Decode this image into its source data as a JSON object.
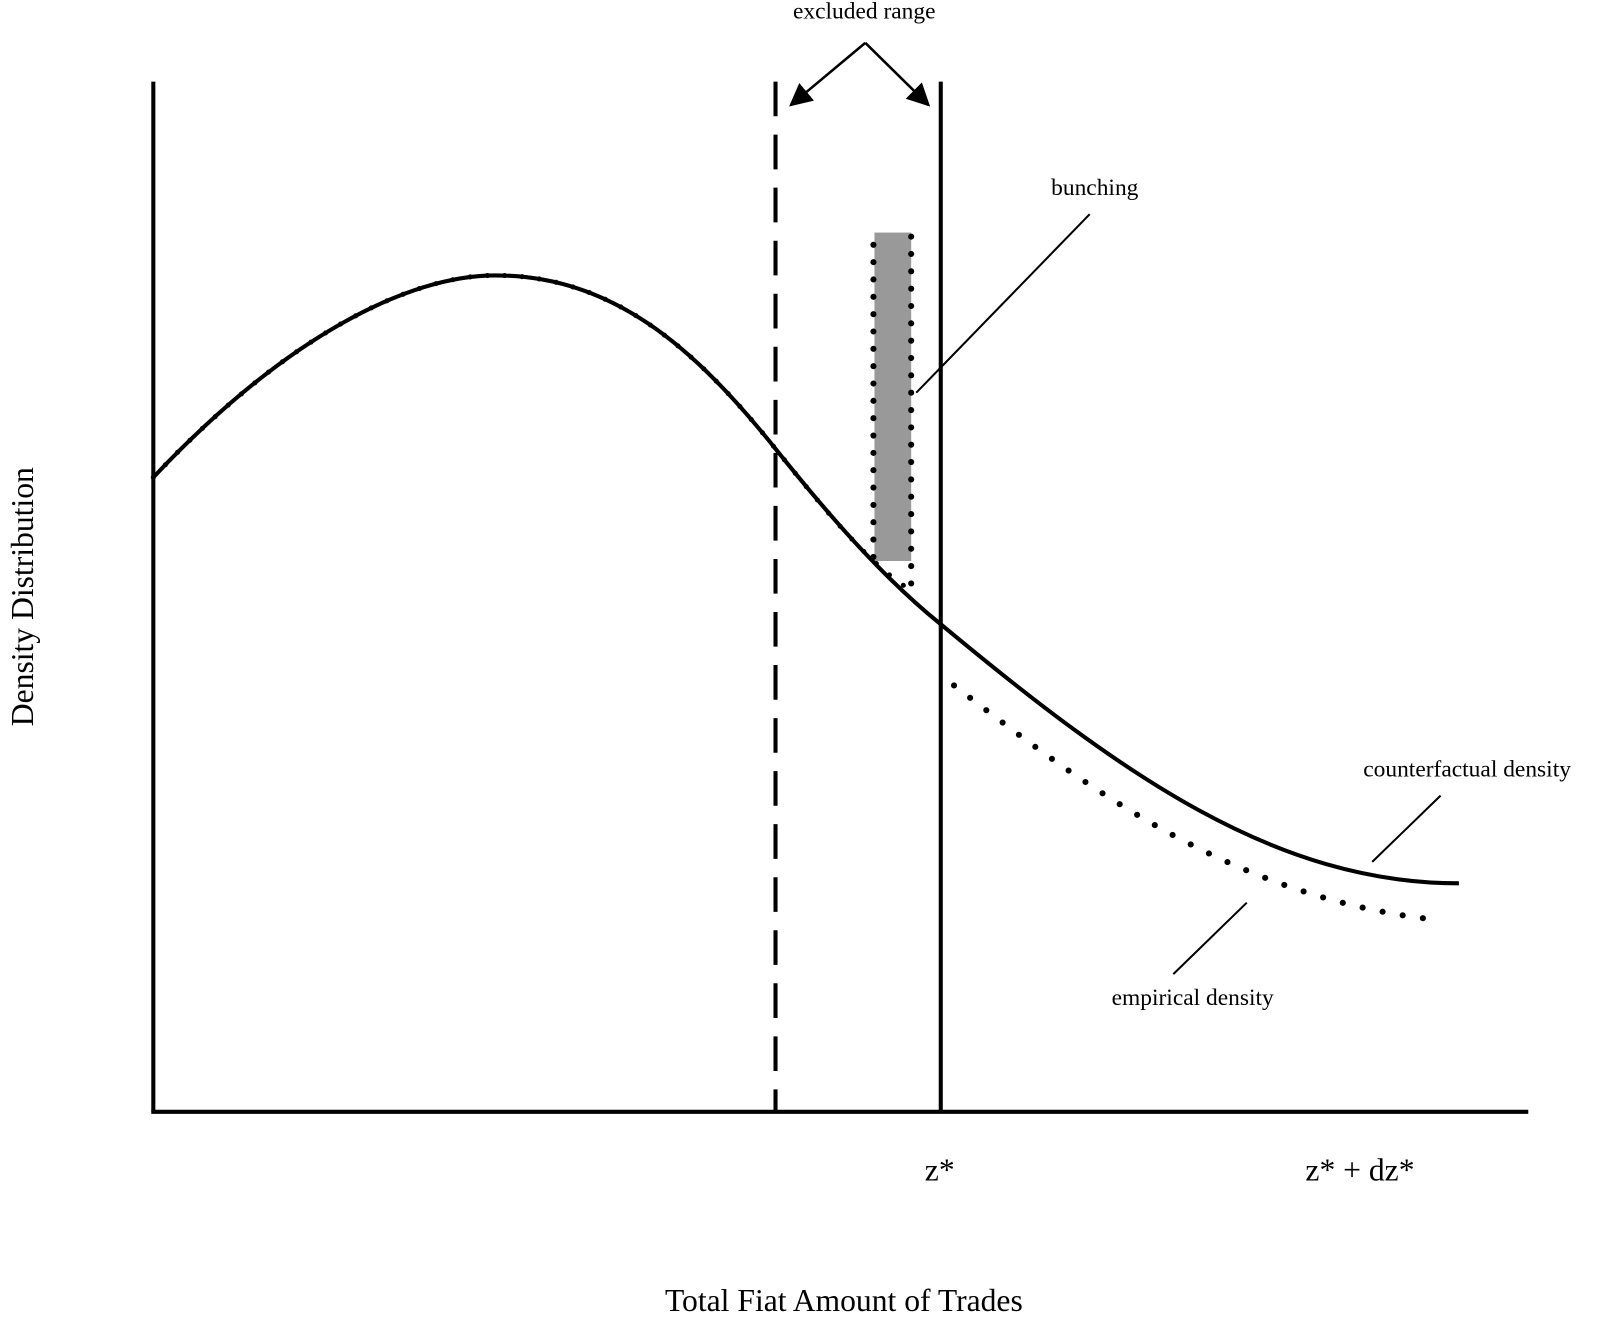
{
  "labels": {
    "excluded_range": "excluded range",
    "bunching": "bunching",
    "counterfactual": "counterfactual density",
    "empirical": "empirical density",
    "threshold": "z*",
    "threshold_shift": "z* + dz*"
  },
  "axes": {
    "y_label": "Density Distribution",
    "x_label": "Total Fiat Amount of Trades"
  }
}
